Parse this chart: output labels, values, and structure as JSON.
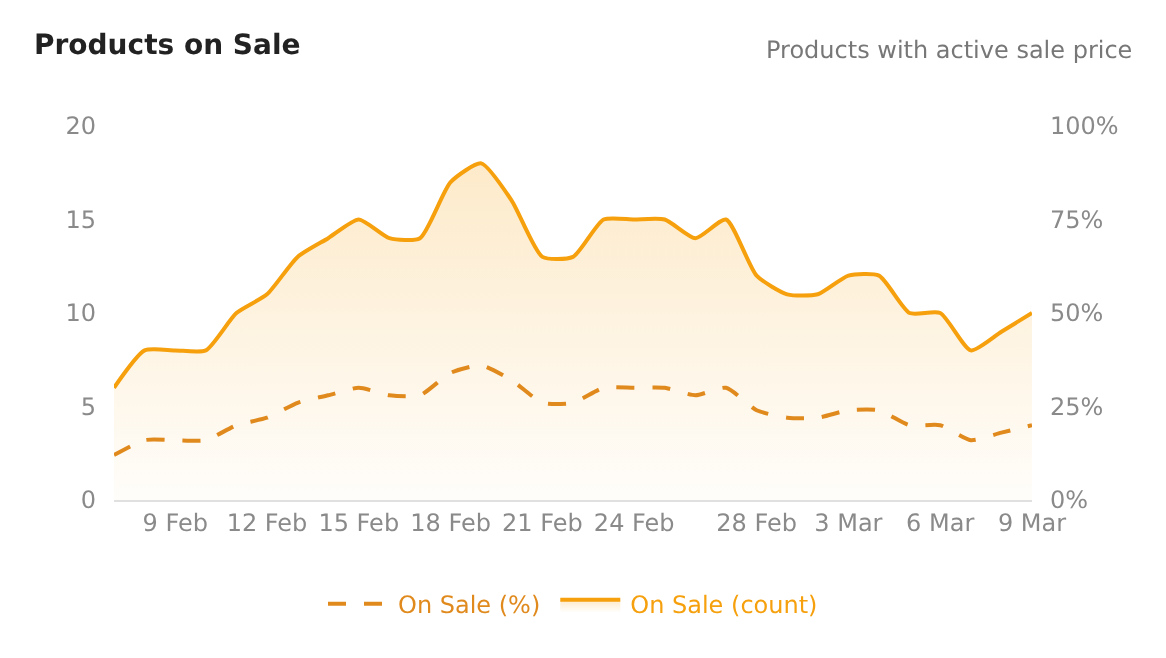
{
  "chart_data": {
    "type": "line",
    "title": "Products on Sale",
    "subtitle": "Products with active sale price",
    "x": [
      "--02-07",
      "--02-08",
      "--02-09",
      "--02-10",
      "--02-11",
      "--02-12",
      "--02-13",
      "--02-14",
      "--02-15",
      "--02-16",
      "--02-17",
      "--02-18",
      "--02-19",
      "--02-20",
      "--02-21",
      "--02-22",
      "--02-23",
      "--02-24",
      "--02-25",
      "--02-26",
      "--02-27",
      "--02-28",
      "--03-01",
      "--03-02",
      "--03-03",
      "--03-04",
      "--03-05",
      "--03-06",
      "--03-07",
      "--03-08",
      "--03-09"
    ],
    "series": [
      {
        "name": "On Sale (%)",
        "type": "line",
        "axis": "y2",
        "line_style": "dashed",
        "color": "#e08a1e",
        "values": [
          12,
          16,
          16,
          16,
          20,
          22,
          26,
          28,
          30,
          28,
          28,
          34,
          36,
          32,
          26,
          26,
          30,
          30,
          30,
          28,
          30,
          24,
          22,
          22,
          24,
          24,
          20,
          20,
          16,
          18,
          20
        ]
      },
      {
        "name": "On Sale (count)",
        "type": "area",
        "line_style": "solid",
        "color": "#f5a00c",
        "values": [
          6,
          8,
          8,
          8,
          10,
          11,
          13,
          14,
          15,
          14,
          14,
          17,
          18,
          16,
          13,
          13,
          15,
          15,
          15,
          14,
          15,
          12,
          11,
          11,
          12,
          12,
          10,
          10,
          8,
          9,
          10
        ]
      }
    ],
    "xlim": [
      "--02-07",
      "--03-09"
    ],
    "xticks": [
      {
        "value": "--02-09",
        "label": "9 Feb"
      },
      {
        "value": "--02-12",
        "label": "12 Feb"
      },
      {
        "value": "--02-15",
        "label": "15 Feb"
      },
      {
        "value": "--02-18",
        "label": "18 Feb"
      },
      {
        "value": "--02-21",
        "label": "21 Feb"
      },
      {
        "value": "--02-24",
        "label": "24 Feb"
      },
      {
        "value": "--02-28",
        "label": "28 Feb"
      },
      {
        "value": "--03-03",
        "label": "3 Mar"
      },
      {
        "value": "--03-06",
        "label": "6 Mar"
      },
      {
        "value": "--03-09",
        "label": "9 Mar"
      }
    ],
    "ylim": [
      0,
      20
    ],
    "yticks": [
      0,
      5,
      10,
      15,
      20
    ],
    "y2lim": [
      0,
      100
    ],
    "y2ticks": [
      {
        "value": 0,
        "label": "0%"
      },
      {
        "value": 25,
        "label": "25%"
      },
      {
        "value": 50,
        "label": "50%"
      },
      {
        "value": 75,
        "label": "75%"
      },
      {
        "value": 100,
        "label": "100%"
      }
    ],
    "grid": false,
    "legend": "bottom",
    "marker": "none"
  }
}
